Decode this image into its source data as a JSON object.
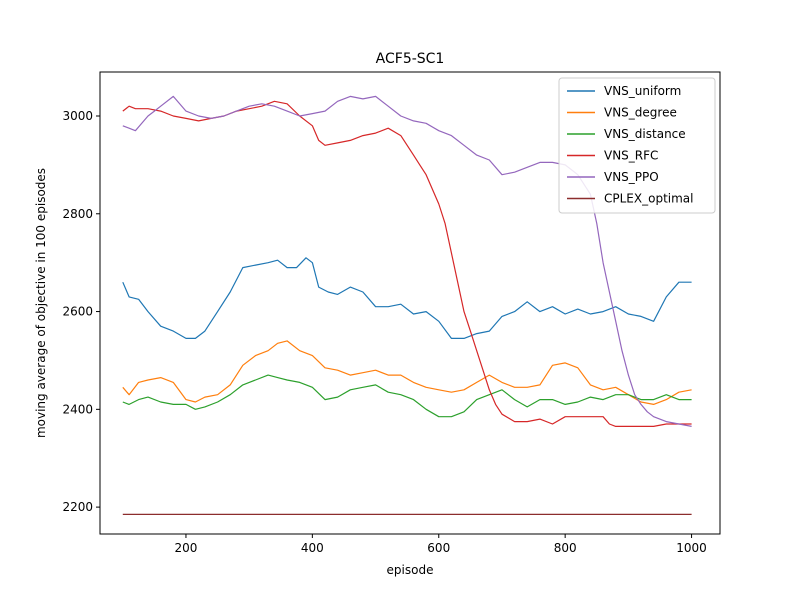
{
  "chart_data": {
    "type": "line",
    "title": "ACF5-SC1",
    "xlabel": "episode",
    "ylabel": "moving average of objective in 100 episodes",
    "xlim": [
      64,
      1045
    ],
    "ylim": [
      2145,
      3090
    ],
    "xticks": [
      200,
      400,
      600,
      800,
      1000
    ],
    "yticks": [
      2200,
      2400,
      2600,
      2800,
      3000
    ],
    "xtick_labels": [
      "200",
      "400",
      "600",
      "800",
      "1000"
    ],
    "ytick_labels": [
      "2200",
      "2400",
      "2600",
      "2800",
      "3000"
    ],
    "grid": false,
    "legend_position": "upper-right",
    "series": [
      {
        "name": "VNS_uniform",
        "color": "#1f77b4",
        "x": [
          100,
          110,
          125,
          140,
          160,
          180,
          200,
          215,
          230,
          250,
          270,
          290,
          310,
          330,
          345,
          360,
          375,
          390,
          400,
          410,
          425,
          440,
          460,
          480,
          500,
          520,
          540,
          560,
          580,
          600,
          620,
          640,
          660,
          680,
          700,
          720,
          740,
          760,
          780,
          800,
          820,
          840,
          860,
          880,
          900,
          920,
          940,
          960,
          980,
          1000
        ],
        "y": [
          2660,
          2630,
          2625,
          2600,
          2570,
          2560,
          2545,
          2545,
          2560,
          2600,
          2640,
          2690,
          2695,
          2700,
          2705,
          2690,
          2690,
          2710,
          2700,
          2650,
          2640,
          2635,
          2650,
          2640,
          2610,
          2610,
          2615,
          2595,
          2600,
          2580,
          2545,
          2545,
          2555,
          2560,
          2590,
          2600,
          2620,
          2600,
          2610,
          2595,
          2605,
          2595,
          2600,
          2610,
          2595,
          2590,
          2580,
          2630,
          2660,
          2660
        ]
      },
      {
        "name": "VNS_degree",
        "color": "#ff7f0e",
        "x": [
          100,
          110,
          125,
          140,
          160,
          180,
          200,
          215,
          230,
          250,
          270,
          290,
          310,
          330,
          345,
          360,
          380,
          400,
          420,
          440,
          460,
          480,
          500,
          520,
          540,
          560,
          580,
          600,
          620,
          640,
          660,
          680,
          700,
          720,
          740,
          760,
          780,
          800,
          820,
          840,
          860,
          880,
          900,
          920,
          940,
          960,
          980,
          1000
        ],
        "y": [
          2445,
          2430,
          2455,
          2460,
          2465,
          2455,
          2420,
          2415,
          2425,
          2430,
          2450,
          2490,
          2510,
          2520,
          2535,
          2540,
          2520,
          2510,
          2485,
          2480,
          2470,
          2475,
          2480,
          2470,
          2470,
          2455,
          2445,
          2440,
          2435,
          2440,
          2455,
          2470,
          2455,
          2445,
          2445,
          2450,
          2490,
          2495,
          2485,
          2450,
          2440,
          2445,
          2430,
          2415,
          2410,
          2420,
          2435,
          2440
        ]
      },
      {
        "name": "VNS_distance",
        "color": "#2ca02c",
        "x": [
          100,
          110,
          125,
          140,
          160,
          180,
          200,
          215,
          230,
          250,
          270,
          290,
          310,
          330,
          345,
          360,
          380,
          400,
          420,
          440,
          460,
          480,
          500,
          520,
          540,
          560,
          580,
          600,
          620,
          640,
          660,
          680,
          700,
          720,
          740,
          760,
          780,
          800,
          820,
          840,
          860,
          880,
          900,
          920,
          940,
          960,
          980,
          1000
        ],
        "y": [
          2415,
          2410,
          2420,
          2425,
          2415,
          2410,
          2410,
          2400,
          2405,
          2415,
          2430,
          2450,
          2460,
          2470,
          2465,
          2460,
          2455,
          2445,
          2420,
          2425,
          2440,
          2445,
          2450,
          2435,
          2430,
          2420,
          2400,
          2385,
          2385,
          2395,
          2420,
          2430,
          2440,
          2420,
          2405,
          2420,
          2420,
          2410,
          2415,
          2425,
          2420,
          2430,
          2430,
          2420,
          2420,
          2430,
          2420,
          2420
        ]
      },
      {
        "name": "VNS_RFC",
        "color": "#d62728",
        "x": [
          100,
          110,
          120,
          140,
          160,
          180,
          200,
          220,
          240,
          260,
          280,
          300,
          320,
          340,
          360,
          380,
          400,
          410,
          420,
          440,
          460,
          480,
          500,
          520,
          540,
          560,
          570,
          580,
          600,
          610,
          620,
          630,
          640,
          650,
          660,
          670,
          680,
          690,
          700,
          720,
          740,
          760,
          780,
          800,
          820,
          840,
          860,
          870,
          880,
          900,
          920,
          940,
          960,
          980,
          1000
        ],
        "y": [
          3010,
          3020,
          3015,
          3015,
          3010,
          3000,
          2995,
          2990,
          2995,
          3000,
          3010,
          3015,
          3020,
          3030,
          3025,
          3000,
          2980,
          2950,
          2940,
          2945,
          2950,
          2960,
          2965,
          2975,
          2960,
          2920,
          2900,
          2880,
          2820,
          2780,
          2720,
          2660,
          2600,
          2560,
          2520,
          2480,
          2440,
          2410,
          2390,
          2375,
          2375,
          2380,
          2370,
          2385,
          2385,
          2385,
          2385,
          2370,
          2365,
          2365,
          2365,
          2365,
          2370,
          2370,
          2370
        ]
      },
      {
        "name": "VNS_PPO",
        "color": "#9467bd",
        "x": [
          100,
          110,
          120,
          140,
          150,
          160,
          180,
          200,
          220,
          240,
          260,
          280,
          300,
          320,
          340,
          360,
          380,
          400,
          420,
          440,
          460,
          480,
          500,
          520,
          540,
          560,
          580,
          600,
          620,
          640,
          660,
          680,
          700,
          720,
          740,
          760,
          780,
          800,
          820,
          840,
          850,
          860,
          870,
          880,
          890,
          900,
          910,
          920,
          930,
          940,
          960,
          980,
          1000
        ],
        "y": [
          2980,
          2975,
          2970,
          3000,
          3010,
          3020,
          3040,
          3010,
          3000,
          2995,
          3000,
          3010,
          3020,
          3025,
          3020,
          3010,
          3000,
          3005,
          3010,
          3030,
          3040,
          3035,
          3040,
          3020,
          3000,
          2990,
          2985,
          2970,
          2960,
          2940,
          2920,
          2910,
          2880,
          2885,
          2895,
          2905,
          2905,
          2900,
          2880,
          2840,
          2780,
          2700,
          2640,
          2580,
          2520,
          2470,
          2430,
          2410,
          2395,
          2385,
          2375,
          2370,
          2365
        ]
      },
      {
        "name": "CPLEX_optimal",
        "color": "#8c2d2d",
        "x": [
          100,
          1000
        ],
        "y": [
          2185,
          2185
        ]
      }
    ]
  }
}
